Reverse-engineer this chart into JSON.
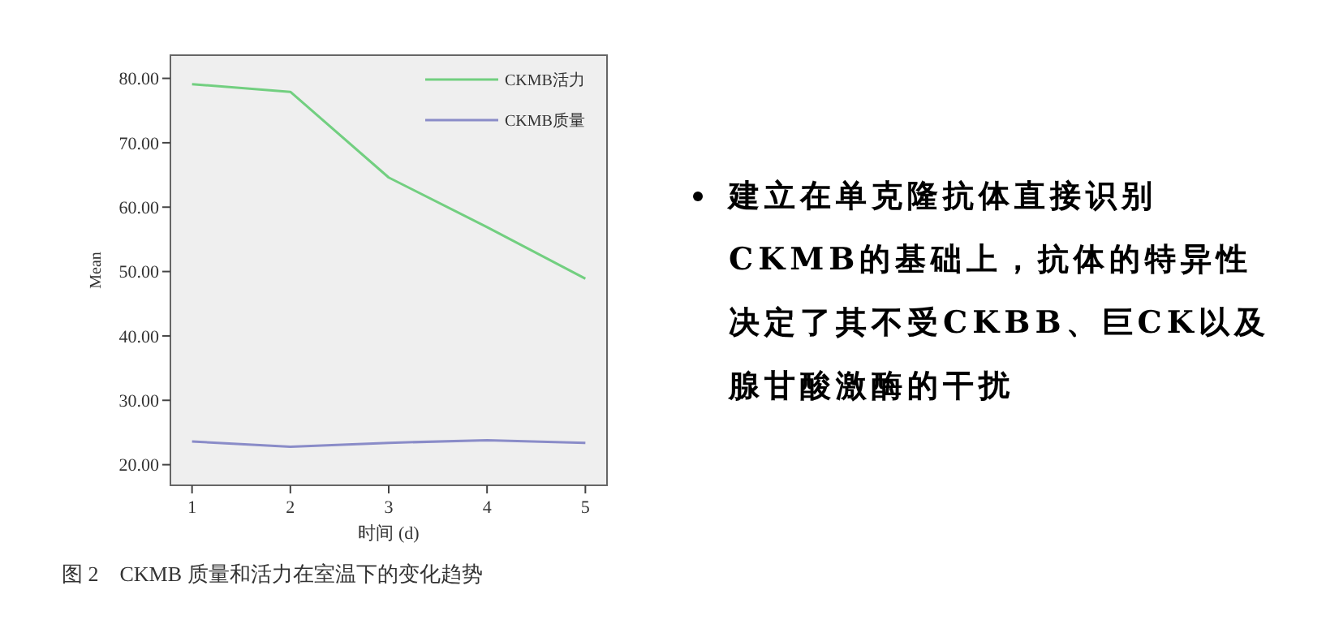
{
  "chart_data": [
    {
      "type": "line",
      "xlabel": "时间 (d)",
      "ylabel": "Mean",
      "x": [
        1,
        2,
        3,
        4,
        5
      ],
      "series": [
        {
          "name": "CKMB活力",
          "color": "#72cf80",
          "values": [
            79.1,
            77.9,
            64.6,
            56.9,
            48.9
          ]
        },
        {
          "name": "CKMB质量",
          "color": "#8a8cc8",
          "values": [
            23.6,
            22.8,
            23.4,
            23.8,
            23.4
          ]
        }
      ],
      "xlim": [
        0.78,
        5.22
      ],
      "xticks": [
        1,
        2,
        3,
        4,
        5
      ],
      "ylim": [
        16.8,
        83.6
      ],
      "yticks": [
        {
          "value": 20,
          "label": "20.00"
        },
        {
          "value": 30,
          "label": "30.00"
        },
        {
          "value": 40,
          "label": "40.00"
        },
        {
          "value": 50,
          "label": "50.00"
        },
        {
          "value": 60,
          "label": "60.00"
        },
        {
          "value": 70,
          "label": "70.00"
        },
        {
          "value": 80,
          "label": "80.00"
        }
      ],
      "legend": "top right",
      "grid": false,
      "marker": "none",
      "line_style": "solid",
      "annotations": [
        "图 2　CKMB 质量和活力在室温下的变化趋势"
      ]
    },
    {
      "type": "other",
      "annotations": [
        "建立在单克隆抗体直接识别",
        "CKMB的基础上，抗体的特异性",
        "决定了其不受CKBB、巨CK以及",
        "腺甘酸激酶的干扰"
      ]
    }
  ]
}
